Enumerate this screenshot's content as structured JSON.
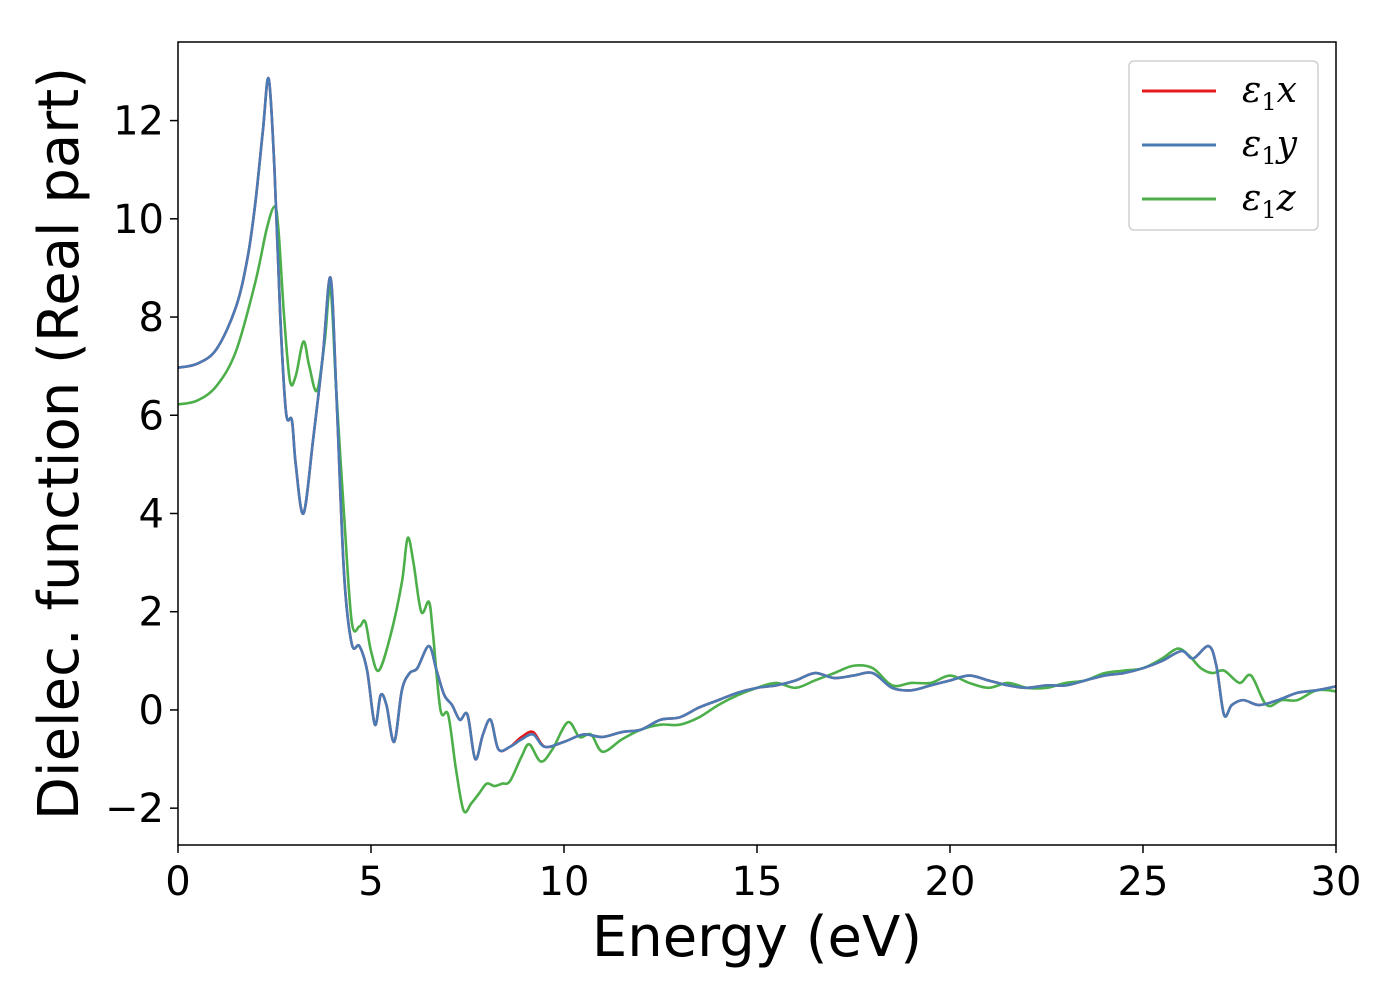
{
  "chart_data": {
    "type": "line",
    "title": "",
    "xlabel": "Energy (eV)",
    "ylabel": "Dielec. function (Real part)",
    "xlim": [
      0,
      30
    ],
    "ylim": [
      -2.75,
      13.6
    ],
    "xticks": [
      0,
      5,
      10,
      15,
      20,
      25,
      30
    ],
    "yticks": [
      -2,
      0,
      2,
      4,
      6,
      8,
      10,
      12
    ],
    "grid": false,
    "legend_position": "top-right",
    "series": [
      {
        "name": "ε₁x",
        "legend_base": "ε",
        "legend_sub": "1",
        "legend_suffix": "x",
        "color": "#e41a1c",
        "x": [
          0,
          0.5,
          1.0,
          1.5,
          1.8,
          2.0,
          2.2,
          2.35,
          2.5,
          2.65,
          2.8,
          2.95,
          3.05,
          3.25,
          3.5,
          3.75,
          3.95,
          4.1,
          4.3,
          4.5,
          4.7,
          4.9,
          5.1,
          5.25,
          5.4,
          5.6,
          5.8,
          6.0,
          6.2,
          6.5,
          6.7,
          6.9,
          7.1,
          7.3,
          7.5,
          7.7,
          7.9,
          8.1,
          8.3,
          8.6,
          8.9,
          9.2,
          9.5,
          10.0,
          10.5,
          11.0,
          11.5,
          12.0,
          12.5,
          13.0,
          13.5,
          14.0,
          14.5,
          15.0,
          15.5,
          16.0,
          16.5,
          17.0,
          17.5,
          18.0,
          18.5,
          19.0,
          19.5,
          20.0,
          20.5,
          21.0,
          21.5,
          22.0,
          22.5,
          23.0,
          23.5,
          24.0,
          24.5,
          25.0,
          25.5,
          26.0,
          26.3,
          26.7,
          26.9,
          27.1,
          27.3,
          27.6,
          28.0,
          28.5,
          29.0,
          29.5,
          30.0
        ],
        "y": [
          6.97,
          7.05,
          7.35,
          8.2,
          9.2,
          10.3,
          11.8,
          12.85,
          11.0,
          8.0,
          6.05,
          5.9,
          5.0,
          4.0,
          5.5,
          7.2,
          8.8,
          6.5,
          2.8,
          1.35,
          1.3,
          0.8,
          -0.3,
          0.3,
          0.1,
          -0.65,
          0.4,
          0.75,
          0.85,
          1.3,
          0.8,
          0.3,
          0.1,
          -0.2,
          -0.1,
          -1.0,
          -0.5,
          -0.2,
          -0.8,
          -0.75,
          -0.55,
          -0.45,
          -0.75,
          -0.65,
          -0.5,
          -0.55,
          -0.45,
          -0.4,
          -0.2,
          -0.15,
          0.05,
          0.2,
          0.35,
          0.45,
          0.5,
          0.6,
          0.75,
          0.65,
          0.7,
          0.75,
          0.45,
          0.4,
          0.5,
          0.6,
          0.7,
          0.6,
          0.5,
          0.45,
          0.5,
          0.5,
          0.6,
          0.7,
          0.75,
          0.85,
          1.0,
          1.2,
          1.05,
          1.3,
          0.9,
          -0.1,
          0.1,
          0.2,
          0.1,
          0.2,
          0.35,
          0.4,
          0.48
        ]
      },
      {
        "name": "ε₁y",
        "legend_base": "ε",
        "legend_sub": "1",
        "legend_suffix": "y",
        "color": "#4a7bb5",
        "x": [
          0,
          0.5,
          1.0,
          1.5,
          1.8,
          2.0,
          2.2,
          2.35,
          2.5,
          2.65,
          2.8,
          2.95,
          3.05,
          3.25,
          3.5,
          3.75,
          3.95,
          4.1,
          4.3,
          4.5,
          4.7,
          4.9,
          5.1,
          5.25,
          5.4,
          5.6,
          5.8,
          6.0,
          6.2,
          6.5,
          6.7,
          6.9,
          7.1,
          7.3,
          7.5,
          7.7,
          7.9,
          8.1,
          8.3,
          8.6,
          8.9,
          9.2,
          9.5,
          10.0,
          10.5,
          11.0,
          11.5,
          12.0,
          12.5,
          13.0,
          13.5,
          14.0,
          14.5,
          15.0,
          15.5,
          16.0,
          16.5,
          17.0,
          17.5,
          18.0,
          18.5,
          19.0,
          19.5,
          20.0,
          20.5,
          21.0,
          21.5,
          22.0,
          22.5,
          23.0,
          23.5,
          24.0,
          24.5,
          25.0,
          25.5,
          26.0,
          26.3,
          26.7,
          26.9,
          27.1,
          27.3,
          27.6,
          28.0,
          28.5,
          29.0,
          29.5,
          30.0
        ],
        "y": [
          6.97,
          7.05,
          7.35,
          8.2,
          9.2,
          10.3,
          11.8,
          12.85,
          11.0,
          8.0,
          6.05,
          5.9,
          5.0,
          4.0,
          5.5,
          7.2,
          8.8,
          6.5,
          2.8,
          1.35,
          1.3,
          0.8,
          -0.3,
          0.3,
          0.1,
          -0.65,
          0.4,
          0.75,
          0.85,
          1.3,
          0.8,
          0.3,
          0.1,
          -0.2,
          -0.1,
          -1.0,
          -0.5,
          -0.2,
          -0.8,
          -0.75,
          -0.6,
          -0.5,
          -0.75,
          -0.65,
          -0.5,
          -0.55,
          -0.45,
          -0.4,
          -0.2,
          -0.15,
          0.05,
          0.2,
          0.35,
          0.45,
          0.5,
          0.6,
          0.75,
          0.65,
          0.7,
          0.75,
          0.45,
          0.4,
          0.5,
          0.6,
          0.7,
          0.6,
          0.5,
          0.45,
          0.5,
          0.5,
          0.6,
          0.7,
          0.75,
          0.85,
          1.0,
          1.2,
          1.05,
          1.3,
          0.9,
          -0.1,
          0.1,
          0.2,
          0.1,
          0.2,
          0.35,
          0.4,
          0.48
        ]
      },
      {
        "name": "ε₁z",
        "legend_base": "ε",
        "legend_sub": "1",
        "legend_suffix": "z",
        "color": "#4daf4a",
        "x": [
          0,
          0.5,
          1.0,
          1.5,
          2.0,
          2.3,
          2.5,
          2.6,
          2.75,
          2.9,
          3.05,
          3.25,
          3.4,
          3.6,
          3.8,
          3.95,
          4.1,
          4.3,
          4.5,
          4.7,
          4.85,
          5.0,
          5.2,
          5.5,
          5.8,
          5.95,
          6.1,
          6.3,
          6.5,
          6.6,
          6.8,
          7.0,
          7.2,
          7.4,
          7.6,
          7.8,
          8.0,
          8.2,
          8.4,
          8.6,
          8.9,
          9.1,
          9.4,
          9.7,
          10.1,
          10.4,
          10.7,
          11.0,
          11.5,
          12.0,
          12.5,
          13.0,
          13.5,
          14.0,
          14.5,
          15.0,
          15.5,
          16.0,
          16.5,
          17.0,
          17.5,
          18.0,
          18.5,
          19.0,
          19.5,
          20.0,
          20.5,
          21.0,
          21.5,
          22.0,
          22.5,
          23.0,
          23.5,
          24.0,
          24.5,
          25.0,
          25.5,
          25.9,
          26.2,
          26.5,
          26.8,
          27.1,
          27.5,
          27.8,
          28.2,
          28.6,
          29.0,
          29.5,
          30.0
        ],
        "y": [
          6.22,
          6.3,
          6.6,
          7.3,
          8.7,
          9.8,
          10.25,
          9.8,
          8.0,
          6.7,
          6.8,
          7.5,
          7.0,
          6.5,
          7.5,
          8.6,
          6.5,
          4.0,
          1.8,
          1.7,
          1.8,
          1.2,
          0.8,
          1.5,
          2.6,
          3.5,
          3.0,
          2.0,
          2.2,
          1.6,
          0.0,
          -0.1,
          -1.2,
          -2.05,
          -1.9,
          -1.7,
          -1.5,
          -1.55,
          -1.5,
          -1.45,
          -0.95,
          -0.7,
          -1.05,
          -0.8,
          -0.25,
          -0.55,
          -0.5,
          -0.85,
          -0.6,
          -0.4,
          -0.3,
          -0.3,
          -0.15,
          0.1,
          0.3,
          0.45,
          0.55,
          0.45,
          0.6,
          0.75,
          0.9,
          0.85,
          0.5,
          0.55,
          0.55,
          0.7,
          0.55,
          0.45,
          0.55,
          0.45,
          0.45,
          0.55,
          0.6,
          0.75,
          0.8,
          0.85,
          1.05,
          1.25,
          1.1,
          0.85,
          0.75,
          0.8,
          0.55,
          0.7,
          0.1,
          0.2,
          0.2,
          0.4,
          0.38
        ]
      }
    ]
  }
}
